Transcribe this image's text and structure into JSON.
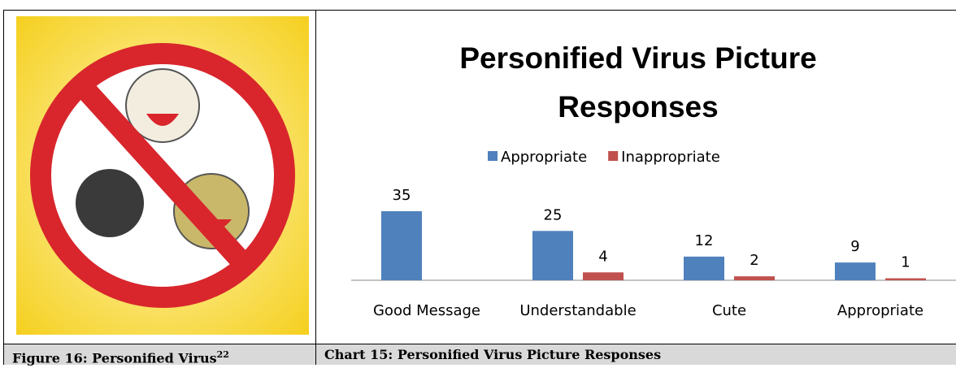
{
  "chart_data": {
    "type": "bar",
    "title": "Personified Virus Picture Responses",
    "categories": [
      "Good Message",
      "Understandable",
      "Cute",
      "Appropriate"
    ],
    "series": [
      {
        "name": "Appropriate",
        "color": "#4f81bd",
        "values": [
          35,
          25,
          12,
          9
        ]
      },
      {
        "name": "Inappropriate",
        "color": "#c0504d",
        "values": [
          null,
          4,
          2,
          1
        ]
      }
    ],
    "grid": false,
    "legend": "top"
  },
  "captions": {
    "figure": "Figure 16: Personified Virus",
    "figure_note": "22",
    "chart": "Chart 15: Personified Virus Picture Responses"
  }
}
